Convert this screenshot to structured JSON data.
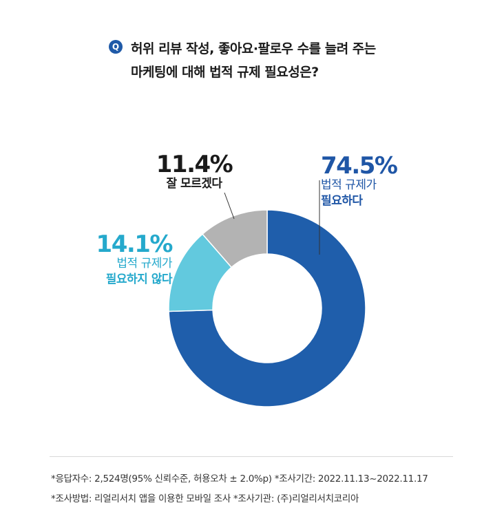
{
  "question": {
    "badge": "Q",
    "line1": "허위 리뷰 작성, 좋아요·팔로우 수를 늘려 주는",
    "line2": "마케팅에 대해 법적 규제 필요성은?"
  },
  "chart_data": {
    "type": "pie",
    "donut": true,
    "title": "",
    "categories": [
      "법적 규제가 필요하다",
      "법적 규제가 필요하지 않다",
      "잘 모르겠다"
    ],
    "values": [
      74.5,
      14.1,
      11.4
    ],
    "unit": "%",
    "colors": [
      "#1f5eab",
      "#62c9de",
      "#b3b3b3"
    ],
    "labels": [
      {
        "pct": "74.5%",
        "line1": "법적 규제가",
        "line2": "필요하다"
      },
      {
        "pct": "14.1%",
        "line1": "법적 규제가",
        "line2": "필요하지 않다"
      },
      {
        "pct": "11.4%",
        "line1": "잘 모르겠다"
      }
    ]
  },
  "notes": {
    "line1": "*응답자수: 2,524명(95% 신뢰수준, 허용오차 ± 2.0%p)  *조사기간: 2022.11.13~2022.11.17",
    "line2": "*조사방법: 리얼리서치 앱을 이용한 모바일 조사  *조사기관: (주)리얼리서치코리아"
  }
}
